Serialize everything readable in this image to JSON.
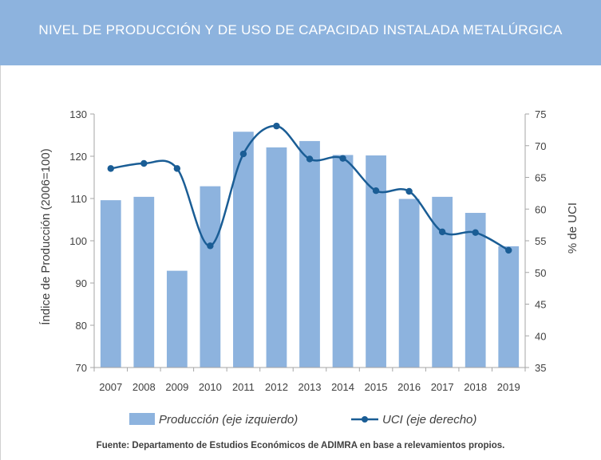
{
  "header": {
    "title": "NIVEL DE PRODUCCIÓN Y DE USO DE CAPACIDAD INSTALADA METALÚRGICA"
  },
  "colors": {
    "header_bg": "#8db3de",
    "bar": "#8db3de",
    "line": "#1a5d95",
    "grid": "#d9d9d9"
  },
  "chart_data": {
    "type": "bar+line",
    "categories": [
      "2007",
      "2008",
      "2009",
      "2010",
      "2011",
      "2012",
      "2013",
      "2014",
      "2015",
      "2016",
      "2017",
      "2018",
      "2019"
    ],
    "series": [
      {
        "name": "Producción (eje izquierdo)",
        "type": "bar",
        "axis": "left",
        "values": [
          109.6,
          110.4,
          92.9,
          112.9,
          125.8,
          122.1,
          123.6,
          120.3,
          120.2,
          109.9,
          110.4,
          106.6,
          98.7
        ]
      },
      {
        "name": "UCI (eje derecho)",
        "type": "line",
        "axis": "right",
        "values": [
          66.4,
          67.2,
          66.4,
          54.2,
          68.7,
          73.1,
          67.9,
          68.0,
          62.9,
          62.8,
          56.4,
          56.3,
          53.5
        ]
      }
    ],
    "ylabel_left": "Índice de Producción (2006=100)",
    "ylabel_right": "% de UCI",
    "ylim_left": [
      70,
      130
    ],
    "yticks_left": [
      70,
      80,
      90,
      100,
      110,
      120,
      130
    ],
    "ylim_right": [
      35,
      75
    ],
    "yticks_right": [
      35,
      40,
      45,
      50,
      55,
      60,
      65,
      70,
      75
    ],
    "grid": false,
    "legend": "bottom"
  },
  "footer": {
    "source": "Fuente: Departamento de Estudios Económicos de ADIMRA en base a relevamientos propios."
  }
}
